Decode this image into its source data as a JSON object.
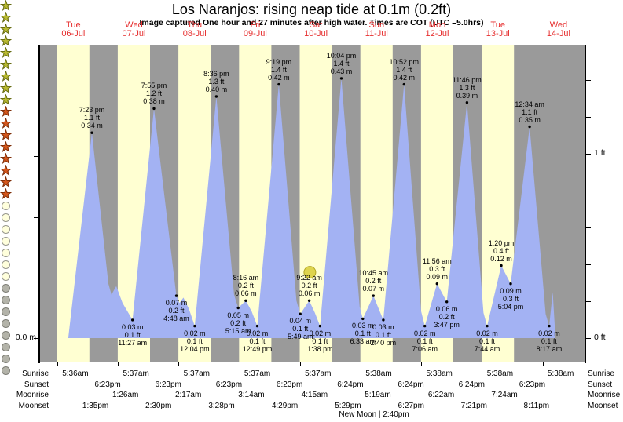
{
  "title": "Los Naranjos: rising  neap tide at 0.1m (0.2ft)",
  "subtitle": "Image captured One hour and 27 minutes after high water. Times are COT (UTC –5.0hrs)",
  "day_labels": [
    {
      "name": "Tue",
      "date": "06-Jul"
    },
    {
      "name": "Wed",
      "date": "07-Jul"
    },
    {
      "name": "Thu",
      "date": "08-Jul"
    },
    {
      "name": "Fri",
      "date": "09-Jul"
    },
    {
      "name": "Sat",
      "date": "10-Jul"
    },
    {
      "name": "Sun",
      "date": "11-Jul"
    },
    {
      "name": "Mon",
      "date": "12-Jul"
    },
    {
      "name": "Tue",
      "date": "13-Jul"
    },
    {
      "name": "Wed",
      "date": "14-Jul"
    }
  ],
  "axis": {
    "left_label": "0.0 m",
    "right_top_label": "1 ft",
    "right_bottom_label": "0 ft"
  },
  "colors": {
    "night_band": "#9a9a9a",
    "day_band": "#ffffd2",
    "tide_fill": "#a3b2f3",
    "date_red": "#e62e2e",
    "sun_marker_fill": "#ded44e",
    "sun_marker_stroke": "#b1a622",
    "sunrise_star_fill": "#b9ba31",
    "sunrise_star_stroke": "#666b12",
    "sunset_star_fill": "#d4571c",
    "sunset_star_stroke": "#7d2d07",
    "moonrise_fill": "#ffffdc",
    "moonrise_stroke": "#99998f",
    "moonset_fill": "#b3b3a9",
    "moonset_stroke": "#7f7f77"
  },
  "chart_data": {
    "type": "area",
    "title": "Los Naranjos tide curve, 06-Jul to 14-Jul",
    "x_unit": "hours from 06-Jul 00:00",
    "y_unit": "m",
    "ylim": [
      0,
      0.5
    ],
    "day_window": {
      "sunrise_hour": 5.6,
      "sunset_hour": 18.383
    },
    "curve_points": [
      [
        10.0,
        0.0
      ],
      [
        19.383,
        0.34
      ],
      [
        25.9,
        0.09
      ],
      [
        27.1,
        0.072
      ],
      [
        29.0,
        0.086
      ],
      [
        31.5,
        0.058
      ],
      [
        35.45,
        0.03
      ],
      [
        43.917,
        0.38
      ],
      [
        52.8,
        0.07
      ],
      [
        54.0,
        0.058
      ],
      [
        55.6,
        0.067
      ],
      [
        57.8,
        0.048
      ],
      [
        60.067,
        0.02
      ],
      [
        68.6,
        0.4
      ],
      [
        75.6,
        0.072
      ],
      [
        77.25,
        0.05
      ],
      [
        80.267,
        0.062
      ],
      [
        82.6,
        0.044
      ],
      [
        84.817,
        0.02
      ],
      [
        93.317,
        0.42
      ],
      [
        100.3,
        0.062
      ],
      [
        101.817,
        0.04
      ],
      [
        105.367,
        0.062
      ],
      [
        107.6,
        0.042
      ],
      [
        109.633,
        0.02
      ],
      [
        118.067,
        0.43
      ],
      [
        125.3,
        0.052
      ],
      [
        126.55,
        0.032
      ],
      [
        130.75,
        0.07
      ],
      [
        132.9,
        0.048
      ],
      [
        134.667,
        0.03
      ],
      [
        142.867,
        0.42
      ],
      [
        149.6,
        0.045
      ],
      [
        151.1,
        0.02
      ],
      [
        155.933,
        0.09
      ],
      [
        159.783,
        0.06
      ],
      [
        167.767,
        0.39
      ],
      [
        174.3,
        0.042
      ],
      [
        175.733,
        0.02
      ],
      [
        181.333,
        0.12
      ],
      [
        185.067,
        0.09
      ],
      [
        192.567,
        0.35
      ],
      [
        198.9,
        0.04
      ],
      [
        200.283,
        0.02
      ],
      [
        201.7,
        0.076
      ],
      [
        202.8,
        0.0
      ]
    ],
    "maxima": [
      {
        "time": "7:23 pm",
        "ft_label": "1.1 ft",
        "m_label": "0.34 m",
        "t": 19.383,
        "h": 0.34
      },
      {
        "time": "7:55 pm",
        "ft_label": "1.2 ft",
        "m_label": "0.38 m",
        "t": 43.917,
        "h": 0.38
      },
      {
        "time": "8:36 pm",
        "ft_label": "1.3 ft",
        "m_label": "0.40 m",
        "t": 68.6,
        "h": 0.4
      },
      {
        "time": "9:19 pm",
        "ft_label": "1.4 ft",
        "m_label": "0.42 m",
        "t": 93.317,
        "h": 0.42
      },
      {
        "time": "10:04 pm",
        "ft_label": "1.4 ft",
        "m_label": "0.43 m",
        "t": 118.067,
        "h": 0.43
      },
      {
        "time": "10:52 pm",
        "ft_label": "1.4 ft",
        "m_label": "0.42 m",
        "t": 142.867,
        "h": 0.42
      },
      {
        "time": "11:46 pm",
        "ft_label": "1.3 ft",
        "m_label": "0.39 m",
        "t": 167.767,
        "h": 0.39
      },
      {
        "time": "12:34 am",
        "ft_label": "1.1 ft",
        "m_label": "0.35 m",
        "t": 192.567,
        "h": 0.35
      },
      {
        "time": "8:16 am",
        "ft_label": "0.2 ft",
        "m_label": "0.06 m",
        "t": 80.267,
        "h": 0.062
      },
      {
        "time": "9:22 am",
        "ft_label": "0.2 ft",
        "m_label": "0.06 m",
        "t": 105.367,
        "h": 0.062
      },
      {
        "time": "10:45 am",
        "ft_label": "0.2 ft",
        "m_label": "0.07 m",
        "t": 130.75,
        "h": 0.07
      },
      {
        "time": "11:56 am",
        "ft_label": "0.3 ft",
        "m_label": "0.09 m",
        "t": 155.933,
        "h": 0.09
      },
      {
        "time": "1:20 pm",
        "ft_label": "0.4 ft",
        "m_label": "0.12 m",
        "t": 181.333,
        "h": 0.12
      }
    ],
    "minima": [
      {
        "m_label": "0.03 m",
        "ft_label": "0.1 ft",
        "time": "11:27 am",
        "t": 35.45,
        "h": 0.03
      },
      {
        "m_label": "0.07 m",
        "ft_label": "0.2 ft",
        "time": "4:48 am",
        "t": 52.8,
        "h": 0.07
      },
      {
        "m_label": "0.02 m",
        "ft_label": "0.1 ft",
        "time": "12:04 pm",
        "t": 60.067,
        "h": 0.02
      },
      {
        "m_label": "0.05 m",
        "ft_label": "0.2 ft",
        "time": "5:15 am",
        "t": 77.25,
        "h": 0.05
      },
      {
        "m_label": "0.02 m",
        "ft_label": "0.1 ft",
        "time": "12:49 pm",
        "t": 84.817,
        "h": 0.02
      },
      {
        "m_label": "0.04 m",
        "ft_label": "0.1 ft",
        "time": "5:49 am",
        "t": 101.817,
        "h": 0.04
      },
      {
        "m_label": "0.02 m",
        "ft_label": "0.1 ft",
        "time": "1:38 pm",
        "t": 109.633,
        "h": 0.02
      },
      {
        "m_label": "0.03 m",
        "ft_label": "0.1 ft",
        "time": "6:33 am",
        "t": 126.55,
        "h": 0.032
      },
      {
        "m_label": "0.03 m",
        "ft_label": "0.1 ft",
        "time": "2:40 pm",
        "t": 134.667,
        "h": 0.03
      },
      {
        "m_label": "0.02 m",
        "ft_label": "0.1 ft",
        "time": "7:06 am",
        "t": 151.1,
        "h": 0.02
      },
      {
        "m_label": "0.06 m",
        "ft_label": "0.2 ft",
        "time": "3:47 pm",
        "t": 159.783,
        "h": 0.06
      },
      {
        "m_label": "0.02 m",
        "ft_label": "0.1 ft",
        "time": "7:44 am",
        "t": 175.733,
        "h": 0.02
      },
      {
        "m_label": "0.09 m",
        "ft_label": "0.3 ft",
        "time": "5:04 pm",
        "t": 185.067,
        "h": 0.09
      },
      {
        "m_label": "0.02 m",
        "ft_label": "0.1 ft",
        "time": "8:17 am",
        "t": 200.283,
        "h": 0.02
      }
    ],
    "sun_marker": {
      "t": 105.6,
      "h": 0.109,
      "r": 7.5
    }
  },
  "events": {
    "rows": [
      {
        "label": "Sunrise",
        "icon": "sunrise-star-icon",
        "entries": [
          {
            "time": "5:36am",
            "t": 5.6
          },
          {
            "time": "5:37am",
            "t": 29.617
          },
          {
            "time": "5:37am",
            "t": 53.617
          },
          {
            "time": "5:37am",
            "t": 77.617
          },
          {
            "time": "5:37am",
            "t": 101.617
          },
          {
            "time": "5:38am",
            "t": 125.633
          },
          {
            "time": "5:38am",
            "t": 149.633
          },
          {
            "time": "5:38am",
            "t": 173.633
          },
          {
            "time": "5:38am",
            "t": 197.633
          }
        ]
      },
      {
        "label": "Sunset",
        "icon": "sunset-star-icon",
        "entries": [
          {
            "time": "6:23pm",
            "t": 18.383
          },
          {
            "time": "6:23pm",
            "t": 42.383
          },
          {
            "time": "6:23pm",
            "t": 66.383
          },
          {
            "time": "6:23pm",
            "t": 90.383
          },
          {
            "time": "6:24pm",
            "t": 114.4
          },
          {
            "time": "6:24pm",
            "t": 138.4
          },
          {
            "time": "6:24pm",
            "t": 162.4
          },
          {
            "time": "6:23pm",
            "t": 186.383
          }
        ]
      },
      {
        "label": "Moonrise",
        "icon": "moonrise-circle-icon",
        "entries": [
          {
            "time": "1:26am",
            "t": 25.433
          },
          {
            "time": "2:17am",
            "t": 50.283
          },
          {
            "time": "3:14am",
            "t": 75.233
          },
          {
            "time": "4:15am",
            "t": 100.25
          },
          {
            "time": "5:19am",
            "t": 125.317
          },
          {
            "time": "6:22am",
            "t": 150.367
          },
          {
            "time": "7:24am",
            "t": 175.4
          }
        ]
      },
      {
        "label": "Moonset",
        "icon": "moonset-circle-icon",
        "entries": [
          {
            "time": "1:35pm",
            "t": 13.583
          },
          {
            "time": "2:30pm",
            "t": 38.5
          },
          {
            "time": "3:28pm",
            "t": 63.467
          },
          {
            "time": "4:29pm",
            "t": 88.483
          },
          {
            "time": "5:29pm",
            "t": 113.483
          },
          {
            "time": "6:27pm",
            "t": 138.45
          },
          {
            "time": "7:21pm",
            "t": 163.35
          },
          {
            "time": "8:11pm",
            "t": 188.183
          }
        ]
      }
    ],
    "new_moon": {
      "phase": "New Moon",
      "time": "2:40pm"
    }
  }
}
